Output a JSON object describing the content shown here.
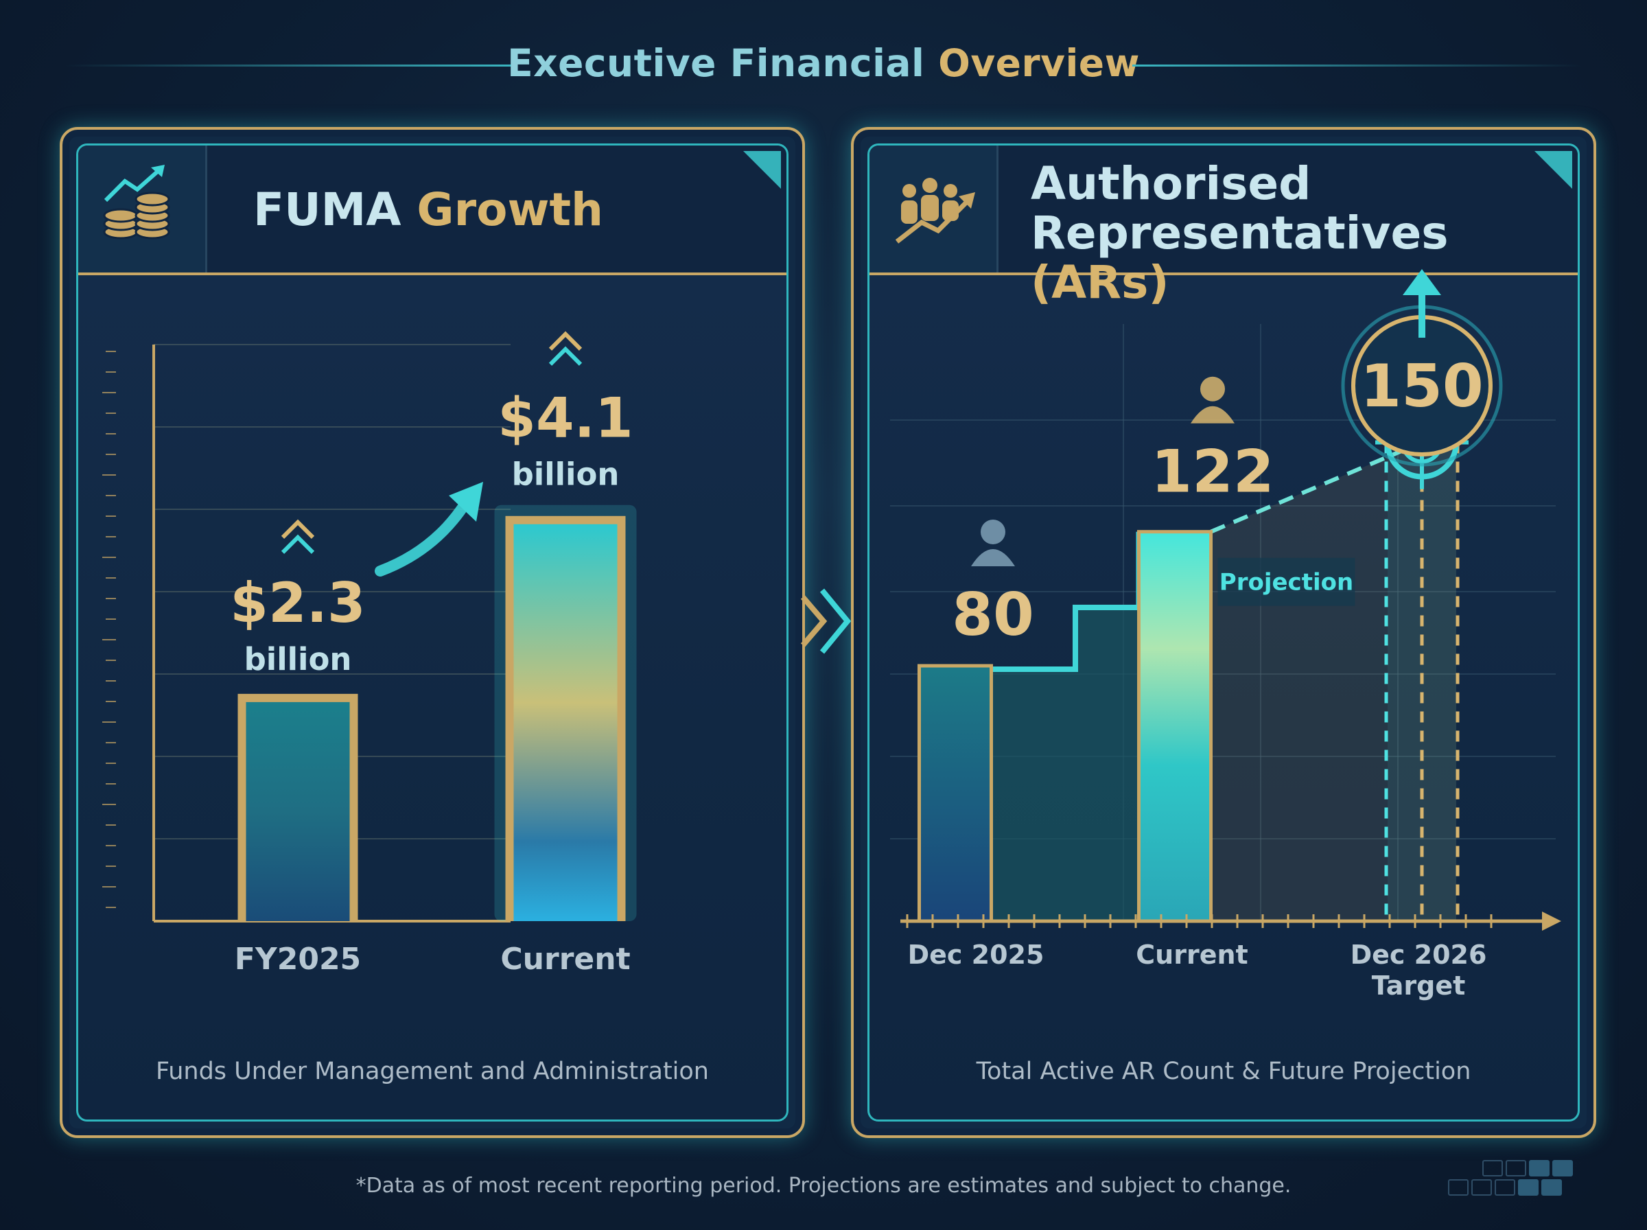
{
  "page_title": {
    "part1": "Executive Financial",
    "part2": "Overview"
  },
  "left_panel": {
    "title_part1": "FUMA",
    "title_part2": "Growth",
    "icon": "coins-growth-icon",
    "caption": "Funds Under Management and Administration"
  },
  "right_panel": {
    "title_line1": "Authorised",
    "title_line2a": "Representatives",
    "title_line2b": "(ARs)",
    "icon": "people-growth-icon",
    "caption": "Total Active AR Count & Future Projection",
    "projection_label": "Projection"
  },
  "footnote": "*Data as of most recent reporting period. Projections are estimates and subject to change.",
  "colors": {
    "gold": "#d8b56e",
    "teal": "#3fd6d8",
    "navy": "#0d1f35"
  },
  "chart_data": [
    {
      "type": "bar",
      "title": "FUMA Growth",
      "categories": [
        "FY2025",
        "Current"
      ],
      "values": [
        2.3,
        4.1
      ],
      "value_labels": [
        "$2.3",
        "$4.1"
      ],
      "unit_label": "billion",
      "ylim": [
        0,
        5.8
      ],
      "grid": true
    },
    {
      "type": "bar",
      "title": "Authorised Representatives (ARs)",
      "categories": [
        "Dec 2025",
        "Current",
        "Dec 2026 Target"
      ],
      "category_labels": [
        [
          "Dec 2025"
        ],
        [
          "Current"
        ],
        [
          "Dec 2026",
          "Target"
        ]
      ],
      "values": [
        80,
        122,
        150
      ],
      "value_labels": [
        "80",
        "122",
        "150"
      ],
      "projected": [
        false,
        false,
        true
      ],
      "ylim": [
        0,
        200
      ],
      "grid": true
    }
  ]
}
